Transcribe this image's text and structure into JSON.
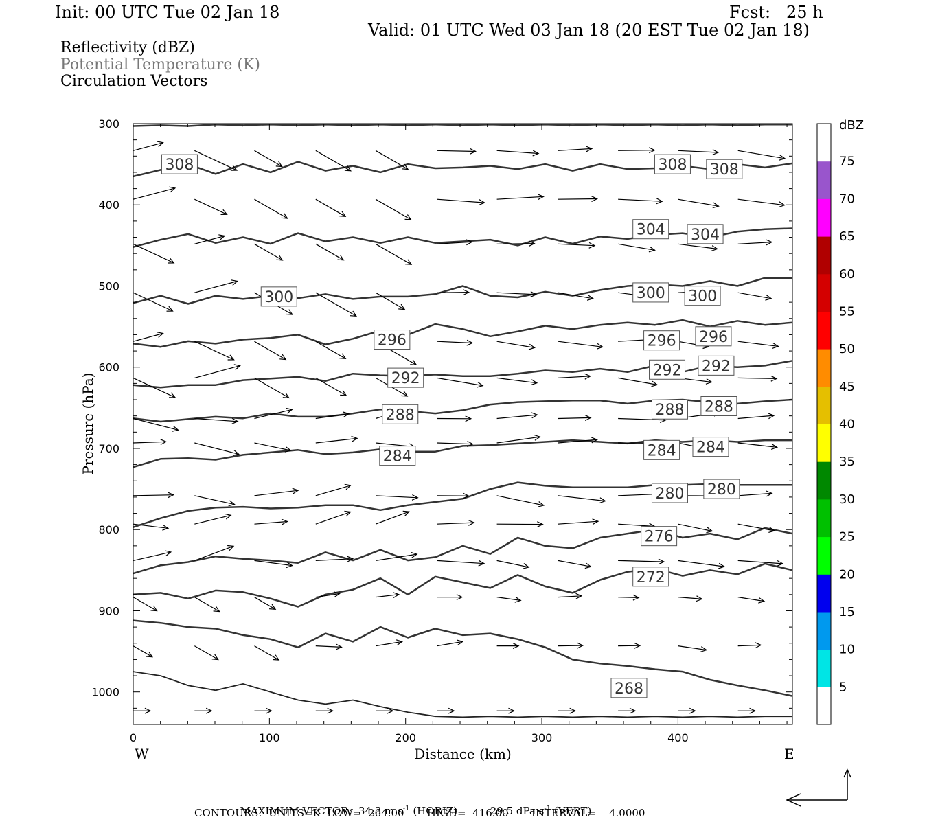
{
  "header": {
    "init": "Init: 00 UTC Tue 02 Jan 18",
    "fcst": "Fcst:   25 h",
    "valid": "Valid: 01 UTC Wed 03 Jan 18 (20 EST Tue 02 Jan 18)"
  },
  "legend": {
    "line1": "Reflectivity (dBZ)",
    "line2": "Potential Temperature (K)",
    "line3": "Circulation Vectors",
    "line2_color": "#777777"
  },
  "footer": {
    "maxvec_label": "MAXIMUM VECTOR:",
    "maxvec_horiz": "34.3 m s",
    "horiz_unit_exp": "-1",
    "horiz_tag": "(HORIZ)",
    "maxvec_vert": "29.5 dPa s",
    "vert_unit_exp": "-1",
    "vert_tag": "(VERT)",
    "contours": "CONTOURS:  UNITS=K  LOW=  264.00       HIGH=  416.00       INTERVAL=    4.0000"
  },
  "chart_data": {
    "type": "cross-section contour with vectors",
    "xlabel": "Distance (km)",
    "ylabel": "Pressure (hPa)",
    "x_ticks": [
      0,
      100,
      200,
      300,
      400
    ],
    "y_ticks": [
      300,
      400,
      500,
      600,
      700,
      800,
      900,
      1000
    ],
    "xlim": [
      0,
      484
    ],
    "ylim": [
      1040,
      300
    ],
    "west_label": "W",
    "east_label": "E",
    "colorbar": {
      "unit": "dBZ",
      "levels": [
        5,
        10,
        15,
        20,
        25,
        30,
        35,
        40,
        45,
        50,
        55,
        60,
        65,
        70,
        75
      ],
      "colors": [
        "#ffffff",
        "#00e5e5",
        "#0099ee",
        "#0000ee",
        "#00ff00",
        "#00c000",
        "#008800",
        "#ffff00",
        "#e5bf00",
        "#ff8c00",
        "#ff0000",
        "#d40000",
        "#b00000",
        "#ff00ff",
        "#9955cc",
        "#ffffff"
      ]
    },
    "isentropes": [
      {
        "value": 308,
        "p": [
          303,
          302,
          303,
          301,
          302,
          301,
          302,
          301,
          302,
          301,
          302,
          301,
          302,
          301,
          302,
          301,
          302,
          301,
          302,
          301,
          302,
          301,
          302,
          301,
          301
        ]
      },
      {
        "value": 308,
        "p": [
          365,
          357,
          350,
          362,
          350,
          360,
          347,
          358,
          352,
          360,
          350,
          355,
          354,
          352,
          356,
          350,
          358,
          350,
          356,
          355,
          352,
          356,
          350,
          354,
          349
        ]
      },
      {
        "value": 304,
        "p": [
          452,
          443,
          436,
          447,
          440,
          448,
          435,
          445,
          440,
          447,
          440,
          447,
          445,
          443,
          450,
          440,
          448,
          439,
          442,
          437,
          435,
          440,
          433,
          430,
          429
        ]
      },
      {
        "value": 300,
        "p": [
          521,
          512,
          522,
          512,
          516,
          512,
          515,
          510,
          516,
          513,
          513,
          510,
          500,
          512,
          514,
          507,
          512,
          505,
          500,
          498,
          500,
          494,
          500,
          490,
          490
        ]
      },
      {
        "value": 296,
        "p": [
          571,
          575,
          568,
          571,
          566,
          564,
          560,
          572,
          565,
          555,
          560,
          547,
          553,
          562,
          556,
          549,
          553,
          548,
          545,
          548,
          542,
          550,
          543,
          548,
          545
        ]
      },
      {
        "value": 292,
        "p": [
          622,
          625,
          622,
          622,
          616,
          614,
          612,
          617,
          608,
          610,
          611,
          609,
          611,
          611,
          608,
          604,
          606,
          602,
          606,
          598,
          606,
          598,
          600,
          598,
          592
        ]
      },
      {
        "value": 288,
        "p": [
          663,
          667,
          664,
          661,
          663,
          657,
          661,
          661,
          657,
          652,
          654,
          657,
          653,
          646,
          643,
          642,
          641,
          641,
          645,
          641,
          640,
          643,
          645,
          642,
          640
        ]
      },
      {
        "value": 284,
        "p": [
          723,
          713,
          712,
          714,
          708,
          705,
          702,
          707,
          705,
          701,
          704,
          704,
          697,
          696,
          694,
          692,
          690,
          692,
          694,
          690,
          692,
          690,
          692,
          690,
          690
        ]
      },
      {
        "value": 280,
        "p": [
          797,
          786,
          777,
          773,
          772,
          774,
          773,
          770,
          770,
          776,
          770,
          766,
          762,
          750,
          742,
          746,
          748,
          748,
          748,
          745,
          745,
          744,
          745,
          745,
          745
        ]
      },
      {
        "value": 276,
        "p": [
          854,
          844,
          840,
          833,
          836,
          838,
          841,
          828,
          838,
          825,
          838,
          834,
          820,
          830,
          810,
          820,
          823,
          810,
          805,
          800,
          810,
          805,
          812,
          798,
          805
        ]
      },
      {
        "value": 272,
        "p": [
          880,
          878,
          885,
          875,
          877,
          885,
          895,
          880,
          874,
          860,
          880,
          858,
          865,
          872,
          856,
          870,
          878,
          862,
          852,
          848,
          857,
          850,
          855,
          842,
          850
        ]
      },
      {
        "value": 268,
        "p": [
          912,
          915,
          920,
          922,
          930,
          935,
          945,
          928,
          938,
          920,
          933,
          922,
          930,
          928,
          935,
          945,
          960,
          965,
          968,
          972,
          975,
          985,
          992,
          998,
          1005
        ]
      }
    ]
  }
}
